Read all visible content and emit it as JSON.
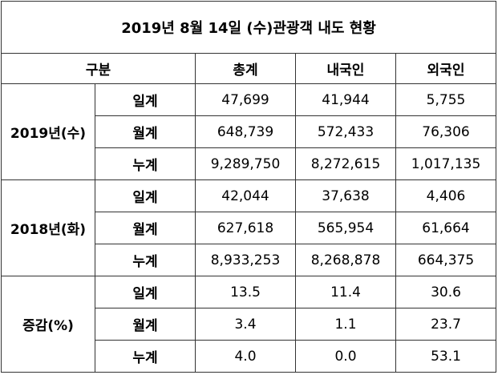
{
  "title": "2019년 8월 14일 (수)관광객 내도 현황",
  "header": [
    "구분",
    "총계",
    "내국인",
    "외국인"
  ],
  "groups": [
    {
      "label": "2019년(수)",
      "rows": [
        {
          "label": "일계",
          "values": [
            "47,699",
            "41,944",
            "5,755"
          ]
        },
        {
          "label": "월계",
          "values": [
            "648,739",
            "572,433",
            "76,306"
          ]
        },
        {
          "label": "누계",
          "values": [
            "9,289,750",
            "8,272,615",
            "1,017,135"
          ]
        }
      ]
    },
    {
      "label": "2018년(화)",
      "rows": [
        {
          "label": "일계",
          "values": [
            "42,044",
            "37,638",
            "4,406"
          ]
        },
        {
          "label": "월계",
          "values": [
            "627,618",
            "565,954",
            "61,664"
          ]
        },
        {
          "label": "누계",
          "values": [
            "8,933,253",
            "8,268,878",
            "664,375"
          ]
        }
      ]
    },
    {
      "label": "증감(%)",
      "rows": [
        {
          "label": "일계",
          "values": [
            "13.5",
            "11.4",
            "30.6"
          ]
        },
        {
          "label": "월계",
          "values": [
            "3.4",
            "1.1",
            "23.7"
          ]
        },
        {
          "label": "누계",
          "values": [
            "4.0",
            "0.0",
            "53.1"
          ]
        }
      ]
    }
  ]
}
